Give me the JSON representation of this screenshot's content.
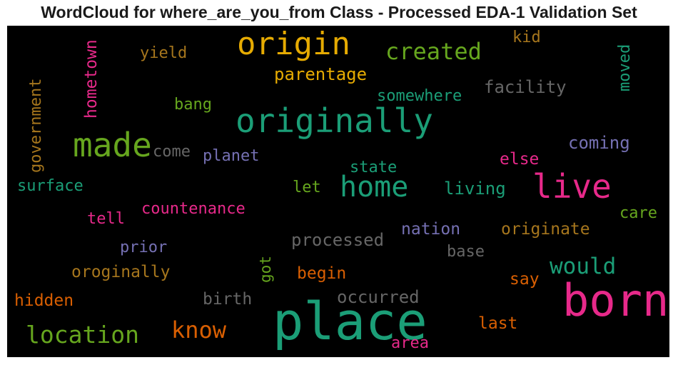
{
  "chart_data": {
    "type": "wordcloud",
    "title": "WordCloud for where_are_you_from Class - Processed EDA-1 Validation Set",
    "background": "#000000",
    "palette": {
      "teal": "#1b9e77",
      "orange": "#d95f02",
      "purple": "#7570b3",
      "pink": "#e7298a",
      "green": "#66a61e",
      "gold": "#e6ab02",
      "brown": "#a6761d",
      "gray": "#666666"
    },
    "words": [
      {
        "text": "place",
        "color": "#1b9e77"
      },
      {
        "text": "born",
        "color": "#e7298a"
      },
      {
        "text": "originally",
        "color": "#1b9e77"
      },
      {
        "text": "origin",
        "color": "#e6ab02"
      },
      {
        "text": "made",
        "color": "#66a61e"
      },
      {
        "text": "live",
        "color": "#e7298a"
      },
      {
        "text": "home",
        "color": "#1b9e77"
      },
      {
        "text": "location",
        "color": "#66a61e"
      },
      {
        "text": "created",
        "color": "#66a61e"
      },
      {
        "text": "know",
        "color": "#d95f02"
      },
      {
        "text": "would",
        "color": "#1b9e77"
      },
      {
        "text": "parentage",
        "color": "#e6ab02"
      },
      {
        "text": "facility",
        "color": "#666666"
      },
      {
        "text": "somewhere",
        "color": "#1b9e77"
      },
      {
        "text": "yield",
        "color": "#a6761d"
      },
      {
        "text": "kid",
        "color": "#a6761d"
      },
      {
        "text": "bang",
        "color": "#66a61e"
      },
      {
        "text": "come",
        "color": "#666666"
      },
      {
        "text": "planet",
        "color": "#7570b3"
      },
      {
        "text": "coming",
        "color": "#7570b3"
      },
      {
        "text": "else",
        "color": "#e7298a"
      },
      {
        "text": "state",
        "color": "#1b9e77"
      },
      {
        "text": "surface",
        "color": "#1b9e77"
      },
      {
        "text": "let",
        "color": "#66a61e"
      },
      {
        "text": "living",
        "color": "#1b9e77"
      },
      {
        "text": "countenance",
        "color": "#e7298a"
      },
      {
        "text": "care",
        "color": "#66a61e"
      },
      {
        "text": "tell",
        "color": "#e7298a"
      },
      {
        "text": "processed",
        "color": "#666666"
      },
      {
        "text": "nation",
        "color": "#7570b3"
      },
      {
        "text": "originate",
        "color": "#a6761d"
      },
      {
        "text": "prior",
        "color": "#7570b3"
      },
      {
        "text": "base",
        "color": "#666666"
      },
      {
        "text": "oroginally",
        "color": "#a6761d"
      },
      {
        "text": "begin",
        "color": "#d95f02"
      },
      {
        "text": "say",
        "color": "#d95f02"
      },
      {
        "text": "hidden",
        "color": "#d95f02"
      },
      {
        "text": "birth",
        "color": "#666666"
      },
      {
        "text": "occurred",
        "color": "#666666"
      },
      {
        "text": "last",
        "color": "#d95f02"
      },
      {
        "text": "area",
        "color": "#e7298a"
      },
      {
        "text": "hometown",
        "color": "#e7298a"
      },
      {
        "text": "government",
        "color": "#a6761d"
      },
      {
        "text": "moved",
        "color": "#1b9e77"
      },
      {
        "text": "got",
        "color": "#66a61e"
      }
    ]
  }
}
